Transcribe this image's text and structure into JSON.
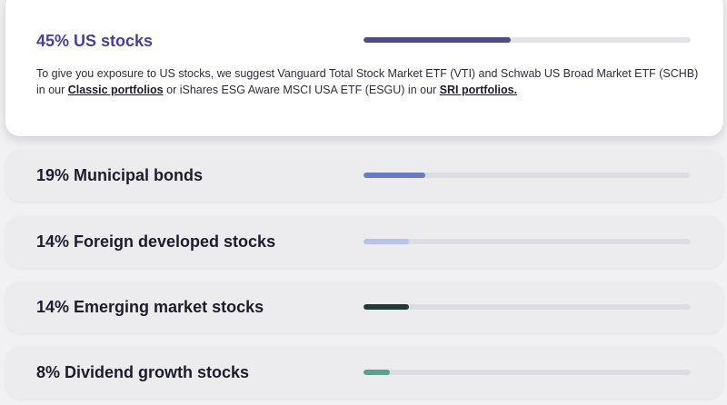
{
  "allocations": [
    {
      "title": "45% US stocks",
      "fill_fraction": 0.45,
      "fill_color": "#4a4f8c",
      "description": {
        "text_1": "To give you exposure to US stocks, we suggest Vanguard Total Stock Market ETF (VTI) and Schwab US Broad Market ETF (SCHB) in our ",
        "link_1": "Classic portfolios",
        "text_2": " or iShares ESG Aware MSCI USA ETF (ESGU) in our ",
        "link_2": "SRI portfolios."
      }
    },
    {
      "title": "19% Municipal bonds",
      "fill_fraction": 0.19,
      "fill_color": "#6a7bc0"
    },
    {
      "title": "14% Foreign developed stocks",
      "fill_fraction": 0.14,
      "fill_color": "#b9c2ee"
    },
    {
      "title": "14% Emerging market stocks",
      "fill_fraction": 0.14,
      "fill_color": "#1f3b34"
    },
    {
      "title": "8% Dividend growth stocks",
      "fill_fraction": 0.08,
      "fill_color": "#5aa28e"
    }
  ]
}
